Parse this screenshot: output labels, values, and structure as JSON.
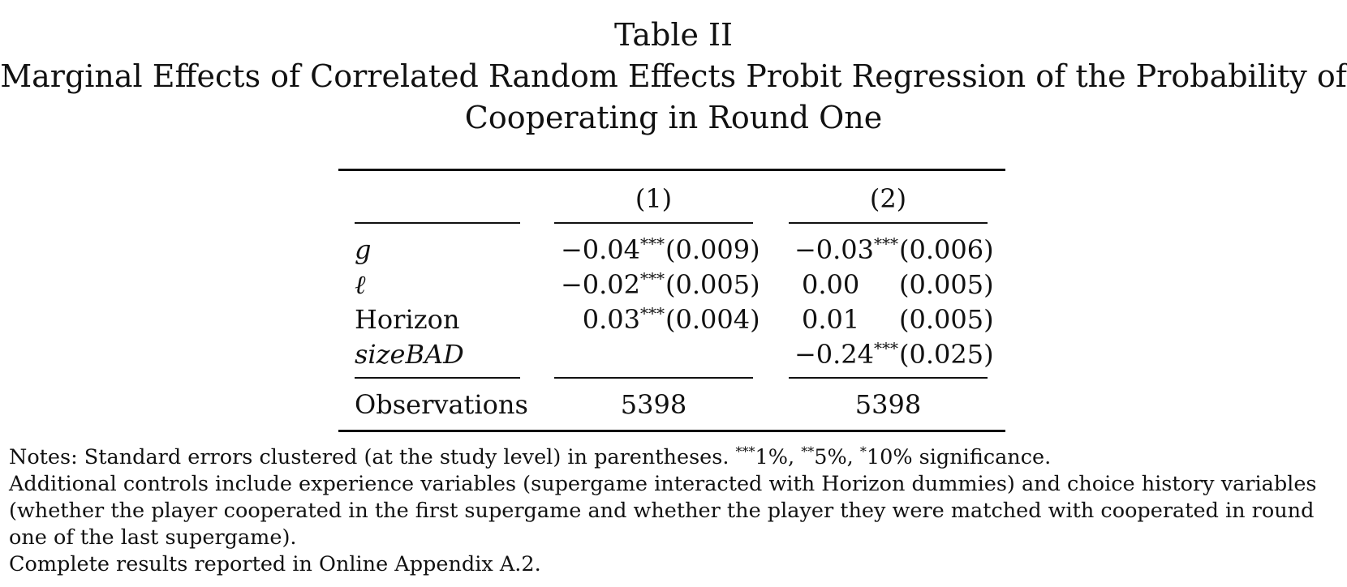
{
  "title": {
    "line1": "Table II",
    "line2": "Marginal Effects of Correlated Random Effects Probit Regression of the Probability of",
    "line3": "Cooperating in Round One"
  },
  "table": {
    "column_headers": [
      "(1)",
      "(2)"
    ],
    "rows": [
      {
        "label": "g",
        "col1": {
          "coef": "−0.04",
          "stars": "***",
          "se": "(0.009)"
        },
        "col2": {
          "coef": "−0.03",
          "stars": "***",
          "se": "(0.006)"
        }
      },
      {
        "label": "ℓ",
        "col1": {
          "coef": "−0.02",
          "stars": "***",
          "se": "(0.005)"
        },
        "col2": {
          "coef": "0.00",
          "stars": "",
          "se": "(0.005)"
        }
      },
      {
        "label": "Horizon",
        "col1": {
          "coef": "0.03",
          "stars": "***",
          "se": "(0.004)"
        },
        "col2": {
          "coef": "0.01",
          "stars": "",
          "se": "(0.005)"
        }
      },
      {
        "label": "sizeBAD",
        "col1": {
          "coef": "",
          "stars": "",
          "se": ""
        },
        "col2": {
          "coef": "−0.24",
          "stars": "***",
          "se": "(0.025)"
        }
      }
    ],
    "observations": {
      "label": "Observations",
      "col1": "5398",
      "col2": "5398"
    }
  },
  "notes": {
    "line1_prefix": "Notes: Standard errors clustered (at the study level) in parentheses. ",
    "sig_levels": [
      {
        "stars": "***",
        "text": "1%, "
      },
      {
        "stars": "**",
        "text": "5%, "
      },
      {
        "stars": "*",
        "text": "10% significance."
      }
    ],
    "line2": "Additional controls include experience variables (supergame interacted with Horizon dummies) and choice history variables",
    "line3": "(whether the player cooperated in the first supergame and whether the player they were matched with cooperated in round",
    "line4": "one of the last supergame).",
    "line5": "Complete results reported in Online Appendix A.2."
  }
}
